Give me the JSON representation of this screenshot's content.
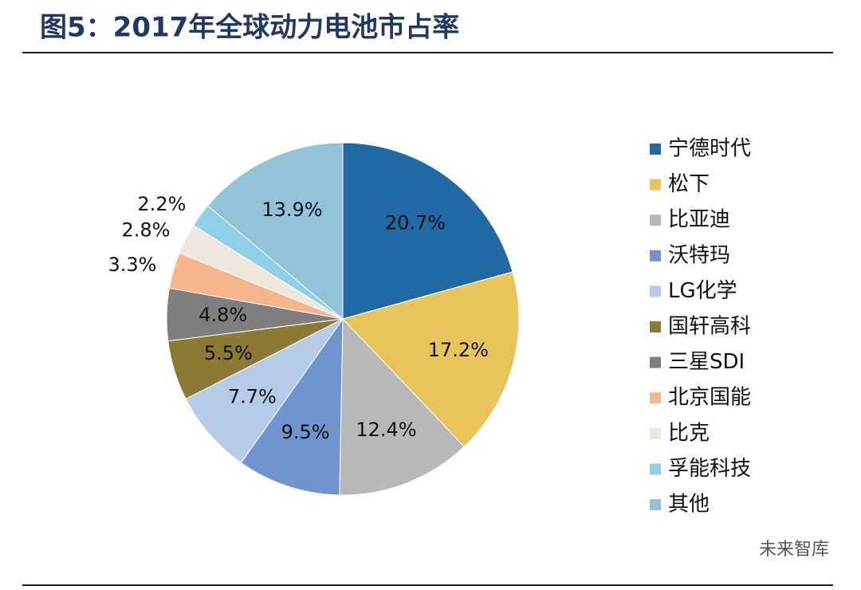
{
  "chart_data": {
    "type": "pie",
    "title": "图5：2017年全球动力电池市占率",
    "categories": [
      "宁德时代",
      "松下",
      "比亚迪",
      "沃特玛",
      "LG化学",
      "国轩高科",
      "三星SDI",
      "北京国能",
      "比克",
      "孚能科技",
      "其他"
    ],
    "values": [
      20.7,
      17.2,
      12.4,
      9.5,
      7.7,
      5.5,
      4.8,
      3.3,
      2.8,
      2.2,
      13.9
    ],
    "value_labels": [
      "20.7%",
      "17.2%",
      "12.4%",
      "9.5%",
      "7.7%",
      "5.5%",
      "4.8%",
      "3.3%",
      "2.8%",
      "2.2%",
      "13.9%"
    ],
    "colors": [
      "#1f6aa5",
      "#e8c55a",
      "#b8b8b8",
      "#6f94cf",
      "#b5cbe8",
      "#8c7a33",
      "#7f7f7f",
      "#f6b58b",
      "#eee7dc",
      "#8fd0e6",
      "#92c3d8"
    ],
    "legend": "right"
  },
  "watermark": "未来智库"
}
